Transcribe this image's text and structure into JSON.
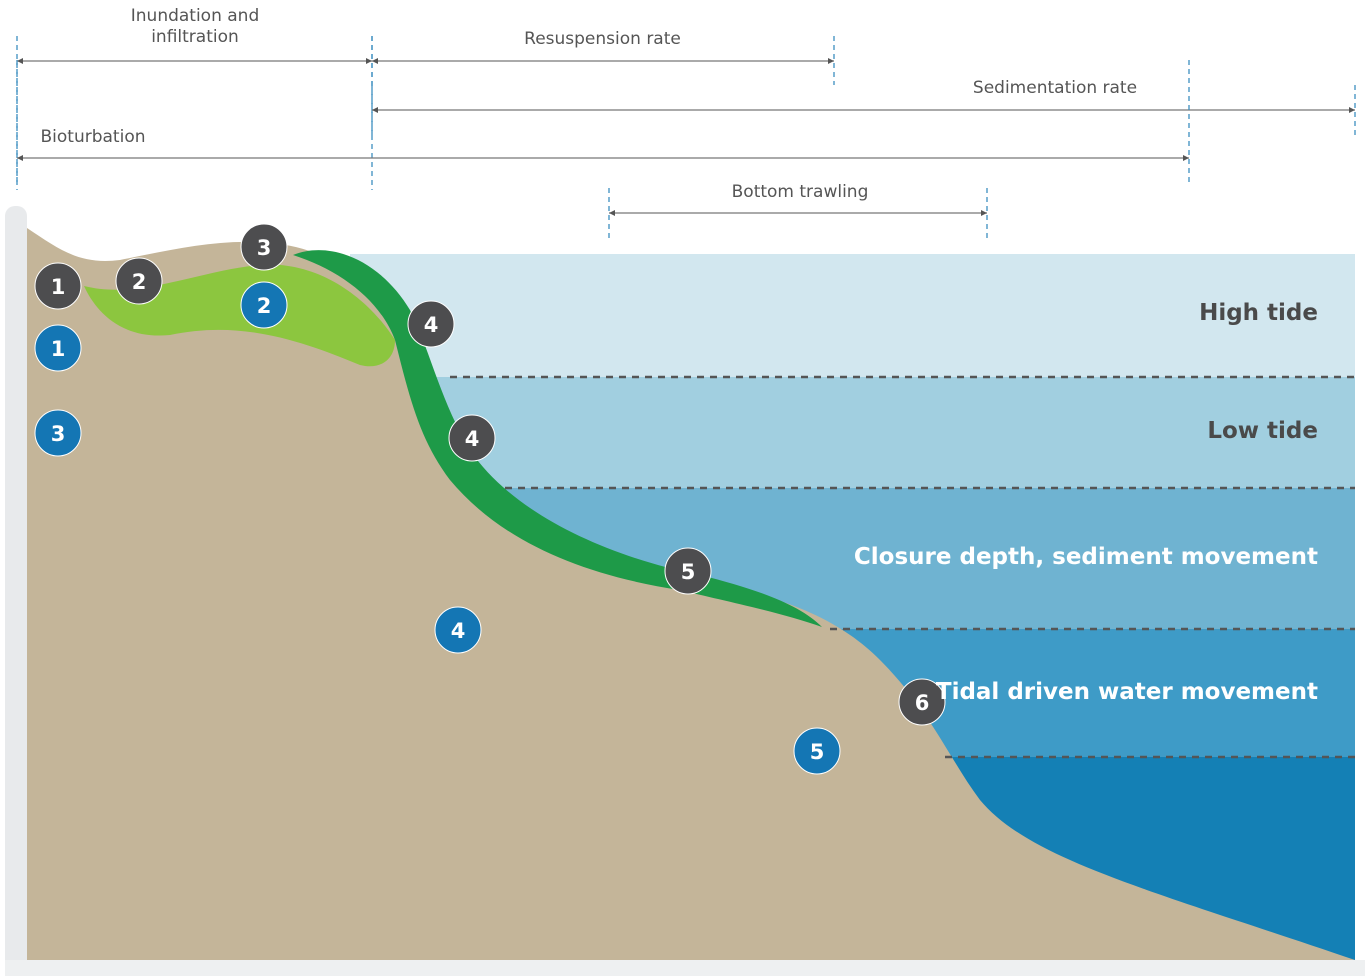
{
  "ranges": [
    {
      "label": "Inundation and infiltration"
    },
    {
      "label": "Resuspension rate"
    },
    {
      "label": "Sedimentation rate"
    },
    {
      "label": "Bioturbation"
    },
    {
      "label": "Bottom trawling"
    }
  ],
  "zones": [
    {
      "label": "High tide"
    },
    {
      "label": "Low tide"
    },
    {
      "label": "Closure depth, sediment movement"
    },
    {
      "label": "Tidal driven water movement"
    }
  ],
  "dark_markers": [
    {
      "label": "1"
    },
    {
      "label": "2"
    },
    {
      "label": "3"
    },
    {
      "label": "4"
    },
    {
      "label": "4"
    },
    {
      "label": "5"
    },
    {
      "label": "6"
    }
  ],
  "blue_markers": [
    {
      "label": "1"
    },
    {
      "label": "2"
    },
    {
      "label": "3"
    },
    {
      "label": "4"
    },
    {
      "label": "5"
    }
  ]
}
